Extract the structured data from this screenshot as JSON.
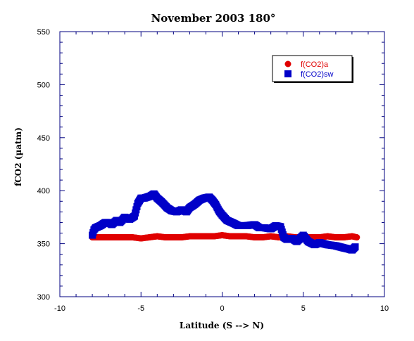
{
  "chart_data": {
    "type": "scatter",
    "title": "November 2003 180°",
    "xlabel": "Latitude (S --> N)",
    "ylabel": "fCO2 (µatm)",
    "xlim": [
      -10,
      10
    ],
    "ylim": [
      300,
      550
    ],
    "x_ticks": [
      "-10",
      "-5",
      "0",
      "5",
      "10"
    ],
    "y_ticks": [
      "300",
      "350",
      "400",
      "450",
      "500",
      "550"
    ],
    "grid": false,
    "legend_position": "top-right",
    "series": [
      {
        "name": "f(CO2)a",
        "color": "#e00000",
        "marker": "circle",
        "x": [
          -8.0,
          -7.5,
          -7.0,
          -6.5,
          -6.0,
          -5.5,
          -5.0,
          -4.5,
          -4.0,
          -3.5,
          -3.0,
          -2.5,
          -2.0,
          -1.5,
          -1.0,
          -0.5,
          0.0,
          0.5,
          1.0,
          1.5,
          2.0,
          2.5,
          3.0,
          3.5,
          4.0,
          4.5,
          5.0,
          5.5,
          6.0,
          6.5,
          7.0,
          7.5,
          8.0,
          8.3
        ],
        "y": [
          356,
          356,
          356,
          356,
          356,
          356,
          355,
          356,
          357,
          356,
          356,
          356,
          357,
          357,
          357,
          357,
          358,
          357,
          357,
          357,
          356,
          356,
          357,
          356,
          357,
          356,
          356,
          356,
          356,
          357,
          356,
          356,
          357,
          356
        ]
      },
      {
        "name": "f(CO2)sw",
        "color": "#0000c8",
        "marker": "square",
        "x": [
          -8.0,
          -7.9,
          -7.8,
          -7.5,
          -7.2,
          -7.0,
          -6.8,
          -6.5,
          -6.3,
          -6.0,
          -5.7,
          -5.4,
          -5.2,
          -5.0,
          -4.8,
          -4.6,
          -4.4,
          -4.2,
          -4.0,
          -3.7,
          -3.4,
          -3.1,
          -2.8,
          -2.5,
          -2.2,
          -2.0,
          -1.7,
          -1.4,
          -1.1,
          -0.8,
          -0.6,
          -0.4,
          -0.2,
          0.0,
          0.3,
          0.6,
          1.0,
          1.5,
          2.0,
          2.3,
          2.6,
          3.0,
          3.3,
          3.6,
          3.8,
          4.0,
          4.3,
          4.6,
          5.0,
          5.3,
          5.7,
          6.0,
          6.5,
          7.0,
          7.5,
          7.8,
          8.0,
          8.2
        ],
        "y": [
          358,
          363,
          365,
          367,
          370,
          370,
          368,
          372,
          370,
          375,
          373,
          376,
          388,
          393,
          393,
          394,
          395,
          397,
          393,
          389,
          384,
          381,
          380,
          382,
          380,
          384,
          387,
          391,
          393,
          394,
          391,
          387,
          381,
          377,
          372,
          370,
          367,
          367,
          368,
          365,
          365,
          364,
          367,
          366,
          356,
          354,
          355,
          352,
          358,
          352,
          349,
          351,
          349,
          348,
          346,
          345,
          344,
          347
        ]
      }
    ]
  }
}
